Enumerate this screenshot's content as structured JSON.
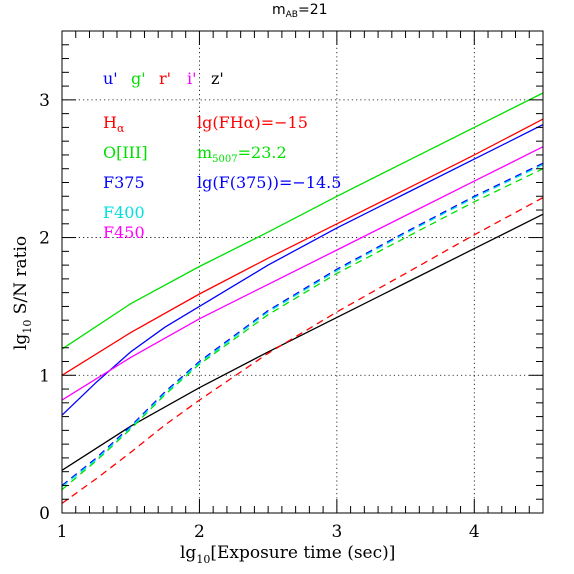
{
  "chart_data": {
    "type": "line",
    "title_main": "m",
    "title_sub": "AB",
    "title_rest": "=21",
    "xlabel_main": "lg",
    "xlabel_sub": "10",
    "xlabel_rest": "[Exposure time (sec)]",
    "ylabel_main": "lg",
    "ylabel_sub": "10",
    "ylabel_rest": " S/N ratio",
    "xlim": [
      1,
      4.5
    ],
    "ylim": [
      0,
      3.5
    ],
    "x_ticks": [
      "1",
      "2",
      "3",
      "4"
    ],
    "y_ticks": [
      "0",
      "1",
      "2",
      "3"
    ],
    "grid": true,
    "colors": {
      "u": "#0000ff",
      "g": "#00e000",
      "r": "#ff0000",
      "i": "#ff00ff",
      "z": "#000000",
      "cyan": "#00e0e0"
    },
    "filter_row": [
      {
        "label": "u'",
        "color": "#0000ff"
      },
      {
        "label": "g'",
        "color": "#00e000"
      },
      {
        "label": "r'",
        "color": "#ff0000"
      },
      {
        "label": "i'",
        "color": "#ff00ff"
      },
      {
        "label": "z'",
        "color": "#000000"
      }
    ],
    "band_labels": {
      "ha_main": "H",
      "ha_sub": "α",
      "oiii": "O[III]",
      "f375": "F375",
      "f400": "F400",
      "f450": "F450"
    },
    "band_values": {
      "ha": "lg(FHα)=−15",
      "oiii_main": "m",
      "oiii_sub": "5007",
      "oiii_rest": "=23.2",
      "f375": "lg(F(375))=−14.5"
    },
    "series": [
      {
        "id": "g-broad",
        "color": "#00e000",
        "style": "solid",
        "x": [
          1.0,
          1.5,
          2.0,
          2.5,
          3.0,
          3.5,
          4.0,
          4.5
        ],
        "y": [
          1.19,
          1.52,
          1.79,
          2.04,
          2.3,
          2.55,
          2.8,
          3.05
        ]
      },
      {
        "id": "r-broad",
        "color": "#ff0000",
        "style": "solid",
        "x": [
          1.0,
          1.5,
          2.0,
          2.5,
          3.0,
          3.5,
          4.0,
          4.5
        ],
        "y": [
          1.0,
          1.31,
          1.59,
          1.85,
          2.1,
          2.35,
          2.6,
          2.86
        ]
      },
      {
        "id": "u-broad",
        "color": "#0000ff",
        "style": "solid",
        "x": [
          1.0,
          1.25,
          1.5,
          1.75,
          2.0,
          2.5,
          3.0,
          3.5,
          4.0,
          4.5
        ],
        "y": [
          0.71,
          0.95,
          1.17,
          1.35,
          1.5,
          1.8,
          2.07,
          2.32,
          2.57,
          2.82
        ]
      },
      {
        "id": "i-broad",
        "color": "#ff00ff",
        "style": "solid",
        "x": [
          1.0,
          1.5,
          2.0,
          2.5,
          3.0,
          3.5,
          4.0,
          4.5
        ],
        "y": [
          0.82,
          1.13,
          1.41,
          1.66,
          1.91,
          2.16,
          2.41,
          2.66
        ]
      },
      {
        "id": "z-broad",
        "color": "#000000",
        "style": "solid",
        "x": [
          1.0,
          1.5,
          2.0,
          2.5,
          3.0,
          3.5,
          4.0,
          4.5
        ],
        "y": [
          0.31,
          0.63,
          0.91,
          1.17,
          1.42,
          1.67,
          1.92,
          2.17
        ]
      },
      {
        "id": "ha-narrow",
        "color": "#ff0000",
        "style": "dashed",
        "x": [
          1.0,
          1.25,
          1.5,
          1.75,
          2.0,
          2.5,
          3.0,
          3.5,
          4.0,
          4.5
        ],
        "y": [
          0.07,
          0.25,
          0.44,
          0.64,
          0.82,
          1.16,
          1.46,
          1.74,
          2.02,
          2.29
        ]
      },
      {
        "id": "oiii-narrow",
        "color": "#00e000",
        "style": "dashed",
        "x": [
          1.0,
          1.25,
          1.5,
          1.75,
          2.0,
          2.5,
          3.0,
          3.5,
          4.0,
          4.5
        ],
        "y": [
          0.17,
          0.38,
          0.61,
          0.86,
          1.08,
          1.44,
          1.74,
          2.0,
          2.26,
          2.5
        ]
      },
      {
        "id": "f375-narrow",
        "color": "#0000ff",
        "style": "dashed",
        "x": [
          1.0,
          1.25,
          1.5,
          1.75,
          2.0,
          2.5,
          3.0,
          3.5,
          4.0,
          4.5
        ],
        "y": [
          0.2,
          0.4,
          0.63,
          0.88,
          1.1,
          1.47,
          1.77,
          2.04,
          2.3,
          2.54
        ]
      },
      {
        "id": "f400-narrow",
        "color": "#00e0e0",
        "style": "dashed",
        "x": [
          1.0,
          1.25,
          1.5,
          1.75,
          2.0,
          2.5,
          3.0,
          3.5,
          4.0,
          4.5
        ],
        "y": [
          0.19,
          0.39,
          0.62,
          0.87,
          1.09,
          1.46,
          1.76,
          2.03,
          2.29,
          2.53
        ]
      }
    ]
  }
}
